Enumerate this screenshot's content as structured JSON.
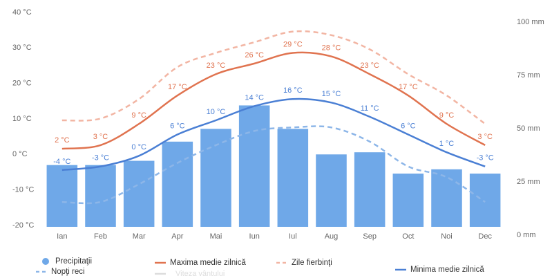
{
  "chart_data": {
    "type": "bar",
    "categories": [
      "Ian",
      "Feb",
      "Mar",
      "Apr",
      "Mai",
      "Iun",
      "Iul",
      "Aug",
      "Sep",
      "Oct",
      "Noi",
      "Dec"
    ],
    "ylim": [
      -20,
      40
    ],
    "yticks": [
      {
        "value": -20,
        "label": "-20 °C"
      },
      {
        "value": -10,
        "label": "-10 °C"
      },
      {
        "value": 0,
        "label": "0 °C"
      },
      {
        "value": 10,
        "label": "10 °C"
      },
      {
        "value": 20,
        "label": "20 °C"
      },
      {
        "value": 30,
        "label": "30 °C"
      },
      {
        "value": 40,
        "label": "40 °C"
      }
    ],
    "y2lim": [
      0,
      100
    ],
    "y2ticks": [
      {
        "value": 0,
        "label": "0 mm"
      },
      {
        "value": 25,
        "label": "25 mm"
      },
      {
        "value": 50,
        "label": "50 mm"
      },
      {
        "value": 75,
        "label": "75 mm"
      },
      {
        "value": 100,
        "label": "100 mm"
      }
    ],
    "series": [
      {
        "name": "Precipitaţii",
        "type": "bar",
        "axis": "y2",
        "color": "#6fa8e8",
        "values": [
          29,
          29,
          31,
          40,
          46,
          57,
          46,
          34,
          35,
          25,
          27,
          25
        ]
      },
      {
        "name": "Maxima medie zilnică",
        "type": "line",
        "color": "#e0734f",
        "values": [
          2,
          3,
          9,
          17,
          23,
          26,
          29,
          28,
          23,
          17,
          9,
          3
        ],
        "value_labels": [
          "2 °C",
          "3 °C",
          "9 °C",
          "17 °C",
          "23 °C",
          "26 °C",
          "29 °C",
          "28 °C",
          "23 °C",
          "17 °C",
          "9 °C",
          "3 °C"
        ]
      },
      {
        "name": "Zile fierbinţi",
        "type": "line",
        "dashed": true,
        "color": "#f2b5a3",
        "values": [
          10,
          10.5,
          16,
          25,
          29,
          32,
          35,
          34,
          30,
          23,
          17,
          9
        ]
      },
      {
        "name": "Minima medie zilnică",
        "type": "line",
        "color": "#4a7fd4",
        "values": [
          -4,
          -3,
          0,
          6,
          10,
          14,
          16,
          15,
          11,
          6,
          1,
          -3
        ],
        "value_labels": [
          "-4 °C",
          "-3 °C",
          "0 °C",
          "6 °C",
          "10 °C",
          "14 °C",
          "16 °C",
          "15 °C",
          "11 °C",
          "6 °C",
          "1 °C",
          "-3 °C"
        ]
      },
      {
        "name": "Nopţi reci",
        "type": "line",
        "dashed": true,
        "color": "#8db6e8",
        "values": [
          -13,
          -13,
          -8,
          -2,
          3,
          7,
          8,
          8,
          4,
          -3,
          -6,
          -13
        ]
      }
    ],
    "inactive_legend": [
      {
        "name": "Viteza vântului",
        "color": "#dddddd"
      }
    ]
  }
}
